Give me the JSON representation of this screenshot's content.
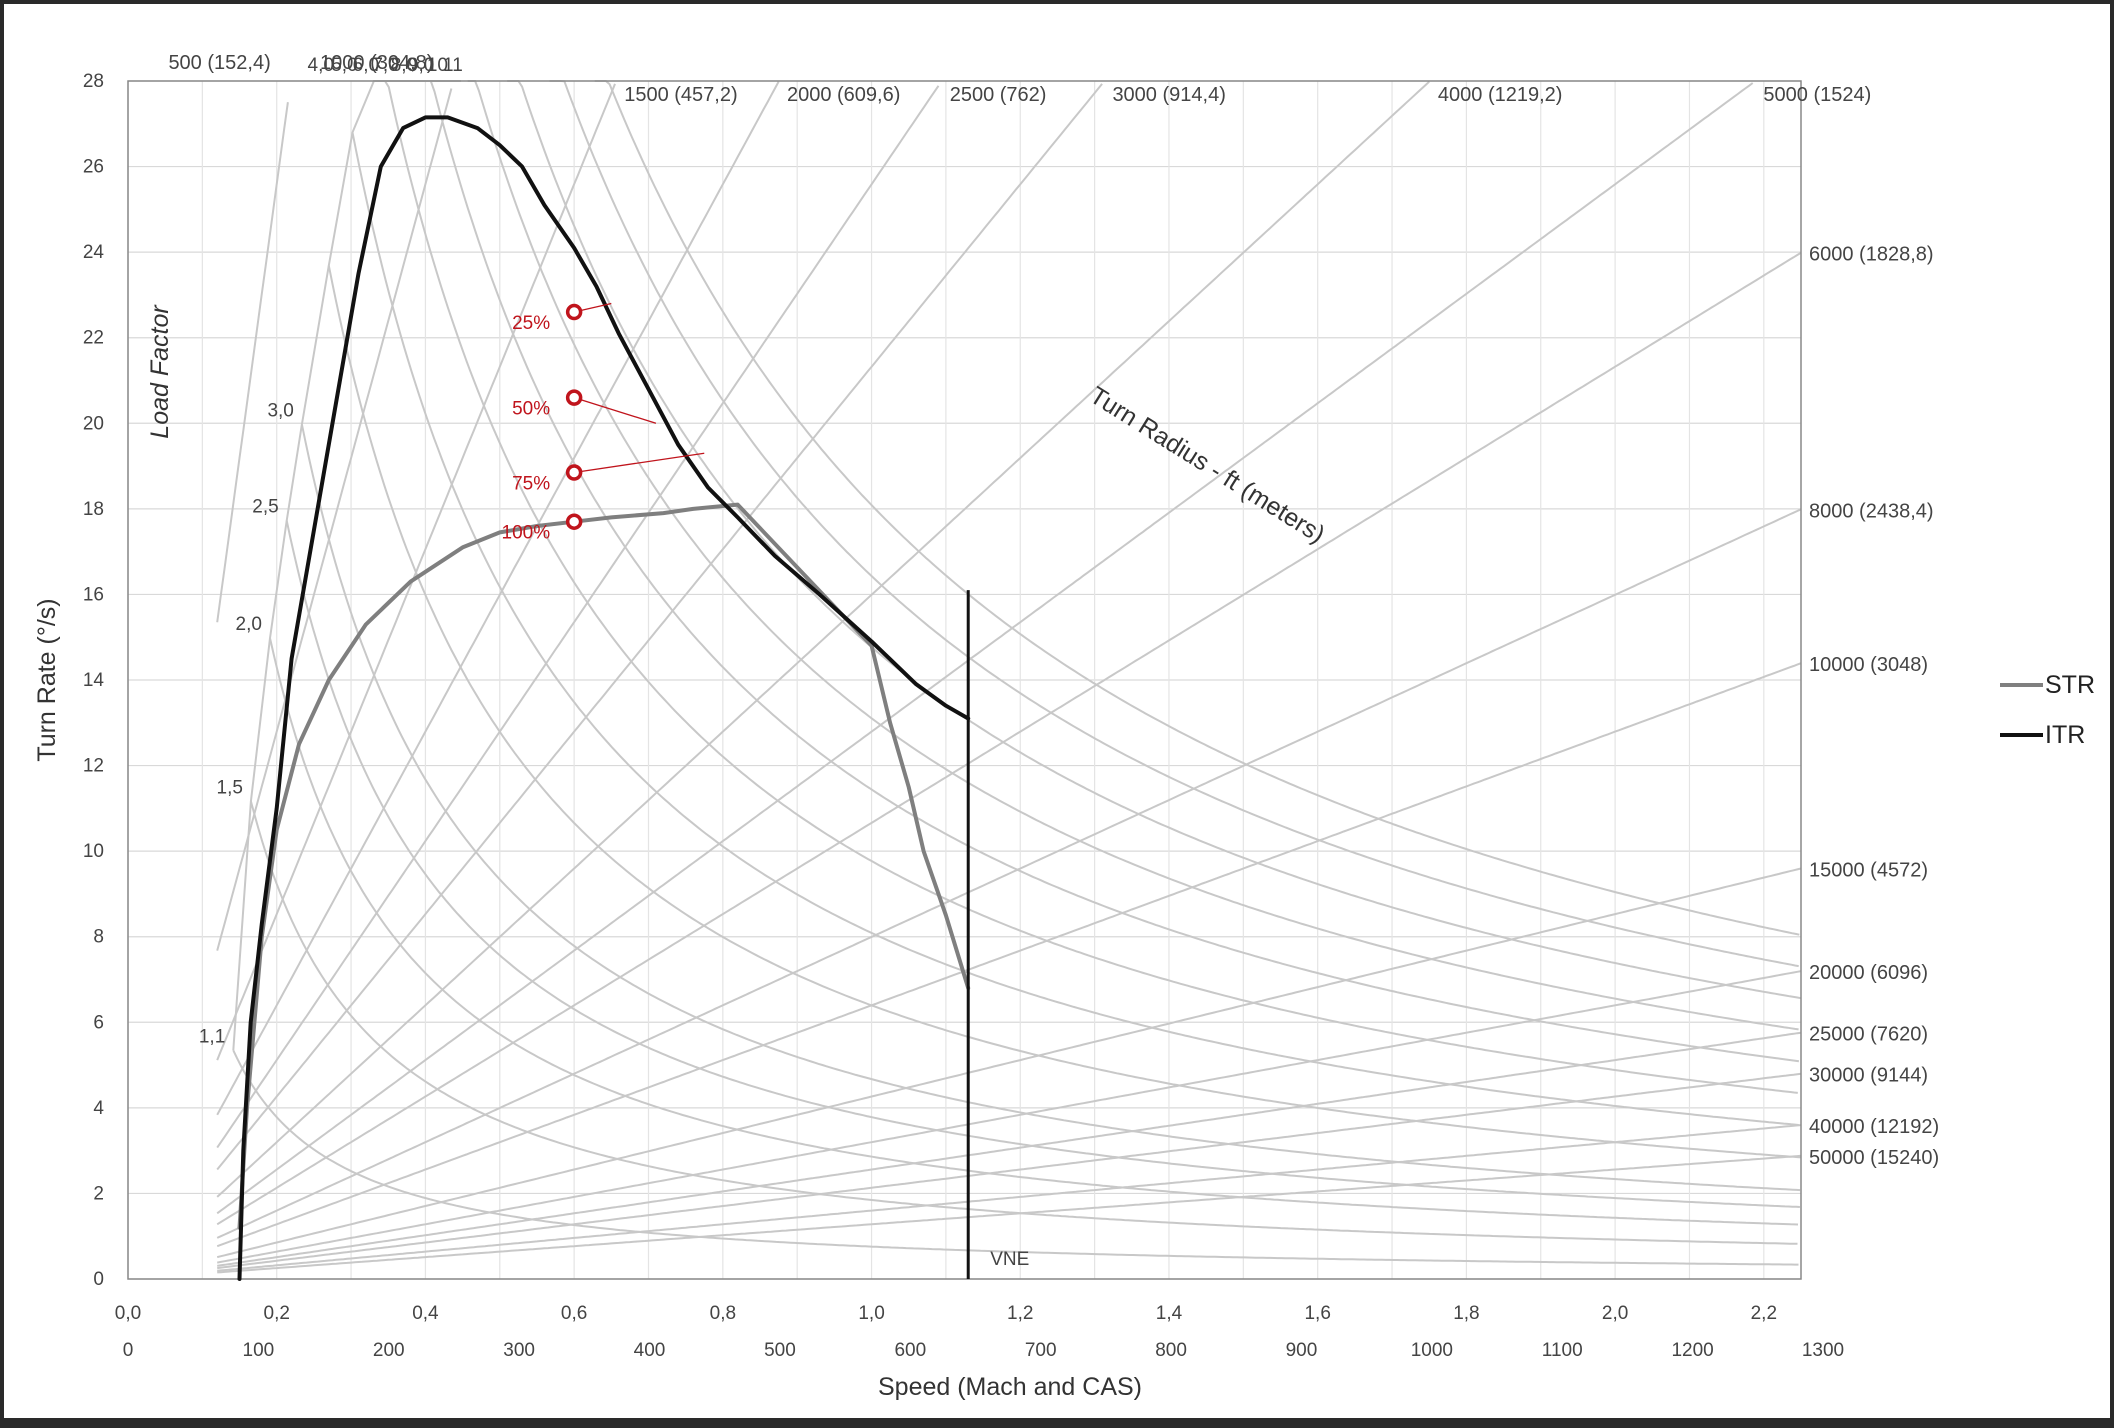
{
  "chart_data": {
    "type": "line",
    "xlabel": "Speed (Mach and CAS)",
    "ylabel": "Turn Rate (°/s)",
    "xlim": [
      0,
      2.25
    ],
    "ylim": [
      0,
      28
    ],
    "grid": true,
    "legend_position": "right",
    "x_ticks_mach": [
      "0,0",
      "0,2",
      "0,4",
      "0,6",
      "0,8",
      "1,0",
      "1,2",
      "1,4",
      "1,6",
      "1,8",
      "2,0",
      "2,2"
    ],
    "x_ticks_cas": [
      "0",
      "100",
      "200",
      "300",
      "400",
      "500",
      "600",
      "700",
      "800",
      "900",
      "1000",
      "1100",
      "1200",
      "1300"
    ],
    "y_ticks": [
      "0",
      "2",
      "4",
      "6",
      "8",
      "10",
      "12",
      "14",
      "16",
      "18",
      "20",
      "22",
      "24",
      "26",
      "28"
    ],
    "radius_title": "Turn Radius - ft (meters)",
    "radius_lines": [
      {
        "ft": 500,
        "label": "500 (152,4)"
      },
      {
        "ft": 1000,
        "label": "1000 (304,8)"
      },
      {
        "ft": 1500,
        "label": "1500 (457,2)"
      },
      {
        "ft": 2000,
        "label": "2000 (609,6)"
      },
      {
        "ft": 2500,
        "label": "2500 (762)"
      },
      {
        "ft": 3000,
        "label": "3000 (914,4)"
      },
      {
        "ft": 4000,
        "label": "4000 (1219,2)"
      },
      {
        "ft": 5000,
        "label": "5000 (1524)"
      },
      {
        "ft": 6000,
        "label": "6000 (1828,8)"
      },
      {
        "ft": 8000,
        "label": "8000 (2438,4)"
      },
      {
        "ft": 10000,
        "label": "10000 (3048)"
      },
      {
        "ft": 15000,
        "label": "15000 (4572)"
      },
      {
        "ft": 20000,
        "label": "20000 (6096)"
      },
      {
        "ft": 25000,
        "label": "25000 (7620)"
      },
      {
        "ft": 30000,
        "label": "30000 (9144)"
      },
      {
        "ft": 40000,
        "label": "40000 (12192)"
      },
      {
        "ft": 50000,
        "label": "50000 (15240)"
      }
    ],
    "load_factor_title": "Load Factor",
    "load_factors": [
      {
        "n": 1.1,
        "label": "1,1"
      },
      {
        "n": 1.5,
        "label": "1,5"
      },
      {
        "n": 2.0,
        "label": "2,0"
      },
      {
        "n": 2.5,
        "label": "2,5"
      },
      {
        "n": 3.0,
        "label": "3,0"
      },
      {
        "n": 4.0,
        "label": "4,0"
      },
      {
        "n": 5.0,
        "label": "5,0"
      },
      {
        "n": 6.0,
        "label": "6,0"
      },
      {
        "n": 7.0,
        "label": "7,0"
      },
      {
        "n": 8.0,
        "label": "8,0"
      },
      {
        "n": 9.0,
        "label": "9,0"
      },
      {
        "n": 10.0,
        "label": "10"
      },
      {
        "n": 11.0,
        "label": "11"
      }
    ],
    "series": [
      {
        "name": "STR",
        "color": "#7f7f7f",
        "points": [
          [
            0.15,
            1.2
          ],
          [
            0.16,
            4.0
          ],
          [
            0.18,
            8.0
          ],
          [
            0.2,
            10.5
          ],
          [
            0.23,
            12.5
          ],
          [
            0.27,
            14.0
          ],
          [
            0.32,
            15.3
          ],
          [
            0.38,
            16.3
          ],
          [
            0.45,
            17.1
          ],
          [
            0.5,
            17.45
          ],
          [
            0.55,
            17.6
          ],
          [
            0.6,
            17.7
          ],
          [
            0.65,
            17.8
          ],
          [
            0.72,
            17.9
          ],
          [
            0.76,
            18.0
          ],
          [
            0.82,
            18.1
          ],
          [
            1.0,
            14.8
          ],
          [
            1.025,
            13.0
          ],
          [
            1.05,
            11.5
          ],
          [
            1.07,
            10.0
          ],
          [
            1.1,
            8.5
          ],
          [
            1.13,
            6.8
          ]
        ]
      },
      {
        "name": "ITR",
        "color": "#111111",
        "points": [
          [
            0.15,
            0
          ],
          [
            0.155,
            3.0
          ],
          [
            0.165,
            6.0
          ],
          [
            0.18,
            8.3
          ],
          [
            0.2,
            11.0
          ],
          [
            0.22,
            14.5
          ],
          [
            0.25,
            17.5
          ],
          [
            0.28,
            20.5
          ],
          [
            0.31,
            23.5
          ],
          [
            0.34,
            26.0
          ],
          [
            0.37,
            26.9
          ],
          [
            0.4,
            27.15
          ],
          [
            0.43,
            27.15
          ],
          [
            0.47,
            26.9
          ],
          [
            0.5,
            26.5
          ],
          [
            0.53,
            26.0
          ],
          [
            0.56,
            25.1
          ],
          [
            0.6,
            24.1
          ],
          [
            0.63,
            23.2
          ],
          [
            0.66,
            22.1
          ],
          [
            0.7,
            20.8
          ],
          [
            0.74,
            19.5
          ],
          [
            0.78,
            18.5
          ],
          [
            0.82,
            17.8
          ],
          [
            0.87,
            16.9
          ],
          [
            0.93,
            16.0
          ],
          [
            1.0,
            14.9
          ],
          [
            1.06,
            13.9
          ],
          [
            1.1,
            13.4
          ],
          [
            1.13,
            13.1
          ]
        ]
      }
    ],
    "vne": {
      "x": 1.13,
      "label": "VNE",
      "y_top": 16.1
    },
    "markers": [
      {
        "label": "25%",
        "x": 0.6,
        "y": 22.6,
        "lx": 0.65,
        "ly": 22.8
      },
      {
        "label": "50%",
        "x": 0.6,
        "y": 20.6,
        "lx": 0.71,
        "ly": 20.0
      },
      {
        "label": "75%",
        "x": 0.6,
        "y": 18.85,
        "lx": 0.775,
        "ly": 19.3
      },
      {
        "label": "100%",
        "x": 0.6,
        "y": 17.7,
        "lx": 0.6,
        "ly": 17.7
      }
    ]
  }
}
